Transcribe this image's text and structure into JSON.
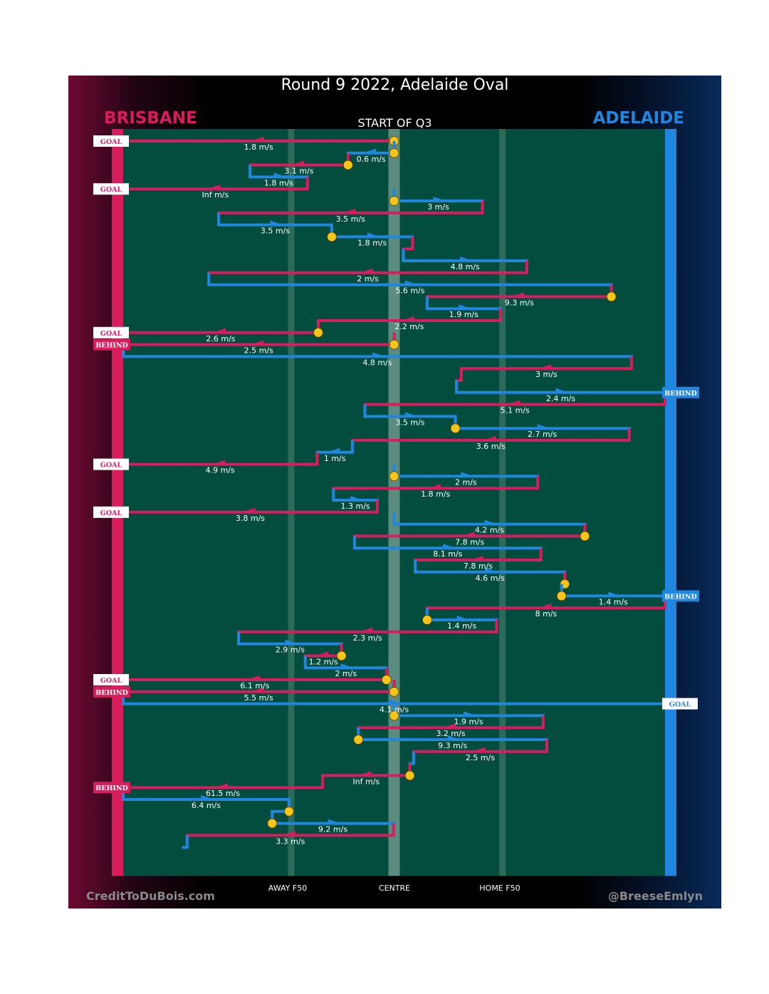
{
  "title": "Round 9 2022, Adelaide Oval",
  "quarter_label": "START OF Q3",
  "teams": {
    "home": {
      "name": "BRISBANE",
      "color": "#d91c5c"
    },
    "away": {
      "name": "ADELAIDE",
      "color": "#1f87e0"
    }
  },
  "credits": {
    "left": "CreditToDuBois.com",
    "right": "@BreeseEmlyn"
  },
  "axis_labels": {
    "away_f50": "AWAY F50",
    "centre": "CENTRE",
    "home_f50": "HOME F50"
  },
  "colors": {
    "field": "#034d3e",
    "brisbane": "#d91c5c",
    "adelaide": "#1f87e0",
    "contest_marker": "#f5c518"
  },
  "chart_data": {
    "type": "line",
    "description_axis": "x = field position from Brisbane goal (0) to Adelaide goal (100), centre at 50; rows are consecutive chains of possession in time order",
    "xlim": [
      0,
      100
    ],
    "x_ticks": [
      {
        "label": "AWAY F50",
        "value": 31
      },
      {
        "label": "CENTRE",
        "value": 50
      },
      {
        "label": "HOME F50",
        "value": 70
      }
    ],
    "chains": [
      {
        "team": "Brisbane",
        "from": 50.0,
        "to": 0,
        "speed": "1.8 m/s",
        "result": "GOAL",
        "start_marker": true
      },
      {
        "team": "Adelaide",
        "from": 50.0,
        "to": 41.5,
        "speed": "0.6 m/s",
        "result": "",
        "start_marker": true
      },
      {
        "team": "Brisbane",
        "from": 41.5,
        "to": 23.4,
        "speed": "3.1 m/s",
        "result": "",
        "start_marker": true
      },
      {
        "team": "Adelaide",
        "from": 23.4,
        "to": 34.0,
        "speed": "1.8 m/s",
        "result": "",
        "start_marker": false
      },
      {
        "team": "Brisbane",
        "from": 34.0,
        "to": 0,
        "speed": "Inf m/s",
        "result": "GOAL",
        "start_marker": false
      },
      {
        "team": "Adelaide",
        "from": 50.0,
        "to": 66.3,
        "speed": "3 m/s",
        "result": "",
        "start_marker": true
      },
      {
        "team": "Brisbane",
        "from": 66.3,
        "to": 17.6,
        "speed": "3.5 m/s",
        "result": "",
        "start_marker": false
      },
      {
        "team": "Adelaide",
        "from": 17.6,
        "to": 38.5,
        "speed": "3.5 m/s",
        "result": "",
        "start_marker": false
      },
      {
        "team": "Adelaide",
        "from": 38.5,
        "to": 53.4,
        "speed": "1.8 m/s",
        "result": "",
        "start_marker": true
      },
      {
        "team": "Brisbane",
        "from": 53.4,
        "to": 51.7,
        "speed": "",
        "result": "",
        "start_marker": false
      },
      {
        "team": "Adelaide",
        "from": 51.7,
        "to": 74.5,
        "speed": "4.8 m/s",
        "result": "",
        "start_marker": false
      },
      {
        "team": "Brisbane",
        "from": 74.5,
        "to": 15.8,
        "speed": "2 m/s",
        "result": "",
        "start_marker": false
      },
      {
        "team": "Adelaide",
        "from": 15.8,
        "to": 90.1,
        "speed": "5.6 m/s",
        "result": "",
        "start_marker": false
      },
      {
        "team": "Brisbane",
        "from": 90.1,
        "to": 56.1,
        "speed": "9.3 m/s",
        "result": "",
        "start_marker": true
      },
      {
        "team": "Adelaide",
        "from": 56.1,
        "to": 69.6,
        "speed": "1.9 m/s",
        "result": "",
        "start_marker": false
      },
      {
        "team": "Brisbane",
        "from": 69.6,
        "to": 36.0,
        "speed": "2.2 m/s",
        "result": "",
        "start_marker": false
      },
      {
        "team": "Brisbane",
        "from": 36.0,
        "to": 0,
        "speed": "2.6 m/s",
        "result": "GOAL",
        "start_marker": true
      },
      {
        "team": "Brisbane",
        "from": 50.0,
        "to": 0,
        "speed": "2.5 m/s",
        "result": "BEHIND",
        "start_marker": true
      },
      {
        "team": "Adelaide",
        "from": 0,
        "to": 93.8,
        "speed": "4.8 m/s",
        "result": "",
        "start_marker": false
      },
      {
        "team": "Brisbane",
        "from": 93.8,
        "to": 62.4,
        "speed": "3 m/s",
        "result": "",
        "start_marker": false
      },
      {
        "team": "Brisbane",
        "from": 62.4,
        "to": 61.5,
        "speed": "",
        "result": "",
        "start_marker": false
      },
      {
        "team": "Adelaide",
        "from": 61.5,
        "to": 100,
        "speed": "2.4 m/s",
        "result": "BEHIND",
        "start_marker": false
      },
      {
        "team": "Brisbane",
        "from": 100,
        "to": 44.6,
        "speed": "5.1 m/s",
        "result": "",
        "start_marker": false
      },
      {
        "team": "Adelaide",
        "from": 44.6,
        "to": 61.3,
        "speed": "3.5 m/s",
        "result": "",
        "start_marker": false
      },
      {
        "team": "Adelaide",
        "from": 61.3,
        "to": 93.4,
        "speed": "2.7 m/s",
        "result": "",
        "start_marker": true
      },
      {
        "team": "Brisbane",
        "from": 93.4,
        "to": 42.3,
        "speed": "3.6 m/s",
        "result": "",
        "start_marker": false
      },
      {
        "team": "Adelaide",
        "from": 42.3,
        "to": 35.8,
        "speed": "1 m/s",
        "result": "",
        "start_marker": false
      },
      {
        "team": "Brisbane",
        "from": 35.8,
        "to": 0,
        "speed": "4.9 m/s",
        "result": "GOAL",
        "start_marker": false
      },
      {
        "team": "Adelaide",
        "from": 50.0,
        "to": 76.5,
        "speed": "2 m/s",
        "result": "",
        "start_marker": true
      },
      {
        "team": "Brisbane",
        "from": 76.5,
        "to": 38.8,
        "speed": "1.8 m/s",
        "result": "",
        "start_marker": false
      },
      {
        "team": "Adelaide",
        "from": 38.8,
        "to": 46.9,
        "speed": "1.3 m/s",
        "result": "",
        "start_marker": false
      },
      {
        "team": "Brisbane",
        "from": 46.9,
        "to": 0,
        "speed": "3.8 m/s",
        "result": "GOAL",
        "start_marker": false
      },
      {
        "team": "Adelaide",
        "from": 50.0,
        "to": 85.2,
        "speed": "4.2 m/s",
        "result": "",
        "start_marker": false
      },
      {
        "team": "Brisbane",
        "from": 85.2,
        "to": 42.7,
        "speed": "7.8 m/s",
        "result": "",
        "start_marker": true
      },
      {
        "team": "Adelaide",
        "from": 42.7,
        "to": 77.1,
        "speed": "8.1 m/s",
        "result": "",
        "start_marker": false
      },
      {
        "team": "Brisbane",
        "from": 77.1,
        "to": 53.9,
        "speed": "7.8 m/s",
        "result": "",
        "start_marker": false
      },
      {
        "team": "Adelaide",
        "from": 53.9,
        "to": 81.5,
        "speed": "4.6 m/s",
        "result": "",
        "start_marker": false
      },
      {
        "team": "Brisbane",
        "from": 81.5,
        "to": 80.9,
        "speed": "",
        "result": "",
        "start_marker": true
      },
      {
        "team": "Adelaide",
        "from": 80.9,
        "to": 100,
        "speed": "1.4 m/s",
        "result": "BEHIND",
        "start_marker": true
      },
      {
        "team": "Brisbane",
        "from": 100,
        "to": 56.1,
        "speed": "8 m/s",
        "result": "",
        "start_marker": false
      },
      {
        "team": "Adelaide",
        "from": 56.1,
        "to": 68.9,
        "speed": "1.4 m/s",
        "result": "",
        "start_marker": true
      },
      {
        "team": "Brisbane",
        "from": 68.9,
        "to": 21.3,
        "speed": "2.3 m/s",
        "result": "",
        "start_marker": false
      },
      {
        "team": "Adelaide",
        "from": 21.3,
        "to": 40.3,
        "speed": "2.9 m/s",
        "result": "",
        "start_marker": false
      },
      {
        "team": "Brisbane",
        "from": 40.3,
        "to": 33.6,
        "speed": "1.2 m/s",
        "result": "",
        "start_marker": true
      },
      {
        "team": "Adelaide",
        "from": 33.6,
        "to": 48.6,
        "speed": "2 m/s",
        "result": "",
        "start_marker": false
      },
      {
        "team": "Brisbane",
        "from": 48.6,
        "to": 0,
        "speed": "6.1 m/s",
        "result": "GOAL",
        "start_marker": true
      },
      {
        "team": "Brisbane",
        "from": 50.0,
        "to": 0,
        "speed": "5.5 m/s",
        "result": "BEHIND",
        "start_marker": true
      },
      {
        "team": "Adelaide",
        "from": 0,
        "to": 100,
        "speed": "4.1 m/s",
        "result": "GOAL",
        "start_marker": false
      },
      {
        "team": "Adelaide",
        "from": 50.0,
        "to": 77.5,
        "speed": "1.9 m/s",
        "result": "",
        "start_marker": true
      },
      {
        "team": "Brisbane",
        "from": 77.5,
        "to": 43.4,
        "speed": "3.2 m/s",
        "result": "",
        "start_marker": false
      },
      {
        "team": "Adelaide",
        "from": 43.4,
        "to": 78.2,
        "speed": "9.3 m/s",
        "result": "",
        "start_marker": true
      },
      {
        "team": "Brisbane",
        "from": 78.2,
        "to": 53.6,
        "speed": "2.5 m/s",
        "result": "",
        "start_marker": false
      },
      {
        "team": "Adelaide",
        "from": 53.6,
        "to": 52.9,
        "speed": "",
        "result": "",
        "start_marker": false
      },
      {
        "team": "Brisbane",
        "from": 52.9,
        "to": 36.8,
        "speed": "Inf m/s",
        "result": "",
        "start_marker": true
      },
      {
        "team": "Brisbane",
        "from": 36.8,
        "to": 0,
        "speed": "61.5 m/s",
        "result": "BEHIND",
        "start_marker": false
      },
      {
        "team": "Adelaide",
        "from": 0,
        "to": 30.6,
        "speed": "6.4 m/s",
        "result": "",
        "start_marker": false
      },
      {
        "team": "Adelaide",
        "from": 30.6,
        "to": 27.5,
        "speed": "",
        "result": "",
        "start_marker": true
      },
      {
        "team": "Adelaide",
        "from": 27.5,
        "to": 49.9,
        "speed": "9.2 m/s",
        "result": "",
        "start_marker": true
      },
      {
        "team": "Brisbane",
        "from": 49.9,
        "to": 11.8,
        "speed": "3.3 m/s",
        "result": "",
        "start_marker": false
      },
      {
        "team": "Adelaide",
        "from": 11.8,
        "to": 11.1,
        "speed": "",
        "result": "",
        "start_marker": false
      }
    ]
  }
}
